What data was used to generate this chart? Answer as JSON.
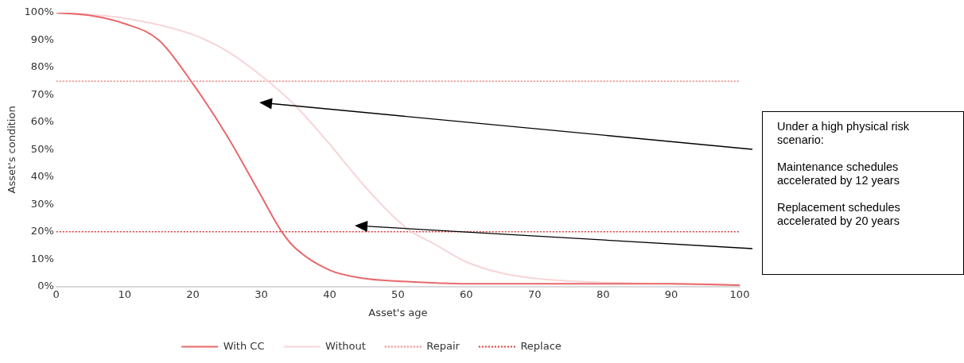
{
  "chart_data": {
    "type": "line",
    "xlabel": "Asset's age",
    "ylabel": "Asset's condition",
    "xlim": [
      0,
      100
    ],
    "xticks": [
      0,
      10,
      20,
      30,
      40,
      50,
      60,
      70,
      80,
      90,
      100
    ],
    "ylim": [
      0,
      100
    ],
    "yticks": [
      {
        "value": 0,
        "label": "0%"
      },
      {
        "value": 10,
        "label": "10%"
      },
      {
        "value": 20,
        "label": "20%"
      },
      {
        "value": 30,
        "label": "30%"
      },
      {
        "value": 40,
        "label": "40%"
      },
      {
        "value": 50,
        "label": "50%"
      },
      {
        "value": 60,
        "label": "60%"
      },
      {
        "value": 70,
        "label": "70%"
      },
      {
        "value": 80,
        "label": "80%"
      },
      {
        "value": 90,
        "label": "90%"
      },
      {
        "value": 100,
        "label": "100%"
      }
    ],
    "series": [
      {
        "name": "With CC",
        "color": "#e8696b",
        "x": [
          0,
          5,
          10,
          15,
          20,
          25,
          30,
          33,
          35,
          40,
          45,
          50,
          60,
          70,
          80,
          90,
          100
        ],
        "values": [
          100,
          99,
          96,
          90,
          74,
          55,
          33,
          20,
          14,
          6,
          3,
          2,
          1,
          1,
          1,
          1,
          0.5
        ]
      },
      {
        "name": "Without",
        "color": "#f7d5d8",
        "x": [
          0,
          10,
          20,
          25,
          30,
          35,
          40,
          45,
          50,
          52,
          55,
          60,
          65,
          70,
          80,
          90,
          100
        ],
        "values": [
          100,
          98,
          92,
          86,
          77,
          66,
          52,
          37,
          24,
          20,
          16,
          9,
          5,
          3,
          1.5,
          1,
          0.5
        ]
      }
    ],
    "ref_lines": [
      {
        "axis": "y",
        "value": 75,
        "label": "Repair",
        "color": "#f08080",
        "line_style": "dotted"
      },
      {
        "axis": "y",
        "value": 20,
        "label": "Replace",
        "color": "#d9383c",
        "line_style": "dotted"
      }
    ],
    "annotations": [
      "Under a high physical risk scenario:",
      "Maintenance schedules accelerated by 12 years",
      "Replacement schedules accelerated by 20 years"
    ],
    "legend": "bottom",
    "grid": false,
    "marker": "none",
    "line_style": "solid"
  }
}
